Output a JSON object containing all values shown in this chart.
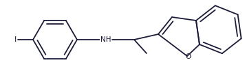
{
  "bg_color": "#ffffff",
  "bond_color": "#1c1c3a",
  "label_color": "#1c1c3a",
  "label_NH": "NH",
  "label_O": "O",
  "label_I": "I",
  "figsize": [
    3.59,
    1.17
  ],
  "dpi": 100,
  "lw": 1.3,
  "off": 0.008
}
